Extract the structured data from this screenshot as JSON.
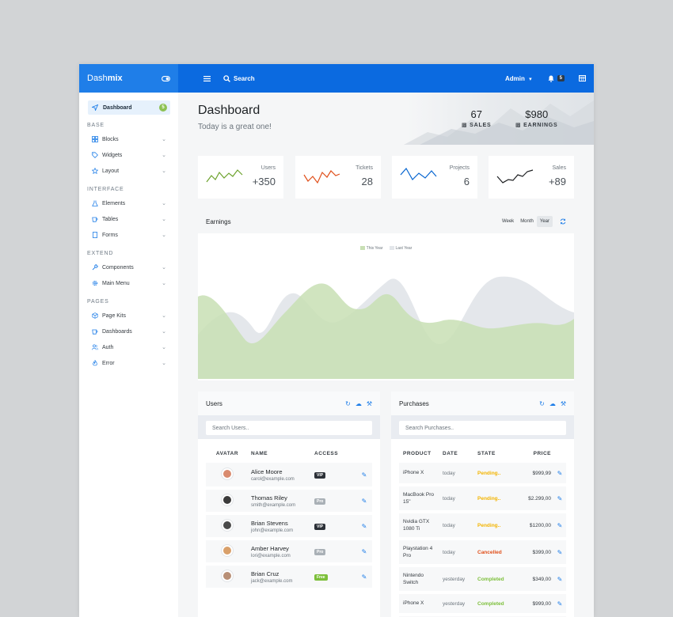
{
  "brand": {
    "left": "Dash",
    "right": "mix"
  },
  "sidebar": {
    "active": {
      "label": "Dashboard",
      "badge": "5"
    },
    "sections": [
      {
        "heading": "BASE",
        "items": [
          {
            "label": "Blocks",
            "icon": "grid-icon"
          },
          {
            "label": "Widgets",
            "icon": "tag-icon"
          },
          {
            "label": "Layout",
            "icon": "star-icon"
          }
        ]
      },
      {
        "heading": "INTERFACE",
        "items": [
          {
            "label": "Elements",
            "icon": "flask-icon"
          },
          {
            "label": "Tables",
            "icon": "cup-icon"
          },
          {
            "label": "Forms",
            "icon": "file-icon"
          }
        ]
      },
      {
        "heading": "EXTEND",
        "items": [
          {
            "label": "Components",
            "icon": "wrench-icon"
          },
          {
            "label": "Main Menu",
            "icon": "gear-icon"
          }
        ]
      },
      {
        "heading": "PAGES",
        "items": [
          {
            "label": "Page Kits",
            "icon": "box-icon"
          },
          {
            "label": "Dashboards",
            "icon": "cup-icon"
          },
          {
            "label": "Auth",
            "icon": "users-icon"
          },
          {
            "label": "Error",
            "icon": "fire-icon"
          }
        ]
      }
    ]
  },
  "topbar": {
    "search_label": "Search",
    "user": "Admin",
    "notifications": "5"
  },
  "hero": {
    "title": "Dashboard",
    "subtitle": "Today is a great one!",
    "stats": [
      {
        "value": "67",
        "label": "SALES"
      },
      {
        "value": "$980",
        "label": "EARNINGS"
      }
    ]
  },
  "mini_cards": [
    {
      "title": "Users",
      "value": "+350",
      "color": "#6ca22c"
    },
    {
      "title": "Tickets",
      "value": "28",
      "color": "#e04f1a"
    },
    {
      "title": "Projects",
      "value": "6",
      "color": "#0665d0"
    },
    {
      "title": "Sales",
      "value": "+89",
      "color": "#1d1f21"
    }
  ],
  "earnings": {
    "title": "Earnings",
    "tabs": [
      "Week",
      "Month",
      "Year"
    ],
    "active_tab": "Year",
    "legend": [
      {
        "label": "This Year",
        "color": "#c8dfb4"
      },
      {
        "label": "Last Year",
        "color": "#e3e6ea"
      }
    ]
  },
  "users": {
    "title": "Users",
    "search_placeholder": "Search Users..",
    "columns": [
      "AVATAR",
      "NAME",
      "ACCESS"
    ],
    "rows": [
      {
        "name": "Alice Moore",
        "email": "carol@example.com",
        "access": "VIP",
        "access_color": "#2c3138",
        "avatar_color": "#d98b6f"
      },
      {
        "name": "Thomas Riley",
        "email": "smith@example.com",
        "access": "Pro",
        "access_color": "#a9b0b6",
        "avatar_color": "#3b3b3b"
      },
      {
        "name": "Brian Stevens",
        "email": "john@example.com",
        "access": "VIP",
        "access_color": "#2c3138",
        "avatar_color": "#4a4a4a"
      },
      {
        "name": "Amber Harvey",
        "email": "lori@example.com",
        "access": "Pro",
        "access_color": "#a9b0b6",
        "avatar_color": "#d9a06a"
      },
      {
        "name": "Brian Cruz",
        "email": "jack@example.com",
        "access": "Free",
        "access_color": "#7cbf3a",
        "avatar_color": "#b88f76"
      }
    ]
  },
  "purchases": {
    "title": "Purchases",
    "search_placeholder": "Search Purchases..",
    "columns": [
      "PRODUCT",
      "DATE",
      "STATE",
      "PRICE"
    ],
    "rows": [
      {
        "product": "iPhone X",
        "date": "today",
        "state": "Pending..",
        "state_color": "#f3b400",
        "price": "$999,99"
      },
      {
        "product": "MacBook Pro 15\"",
        "date": "today",
        "state": "Pending..",
        "state_color": "#f3b400",
        "price": "$2.299,00"
      },
      {
        "product": "Nvidia GTX 1080 Ti",
        "date": "today",
        "state": "Pending..",
        "state_color": "#f3b400",
        "price": "$1200,00"
      },
      {
        "product": "Playstation 4 Pro",
        "date": "today",
        "state": "Cancelled",
        "state_color": "#e04f1a",
        "price": "$399,00"
      },
      {
        "product": "Nintendo Switch",
        "date": "yesterday",
        "state": "Completed",
        "state_color": "#7cbf3a",
        "price": "$349,00"
      },
      {
        "product": "iPhone X",
        "date": "yesterday",
        "state": "Completed",
        "state_color": "#7cbf3a",
        "price": "$999,00"
      },
      {
        "product": "iPhone X",
        "date": "",
        "state": "",
        "state_color": "#7cbf3a",
        "price": ""
      }
    ]
  }
}
